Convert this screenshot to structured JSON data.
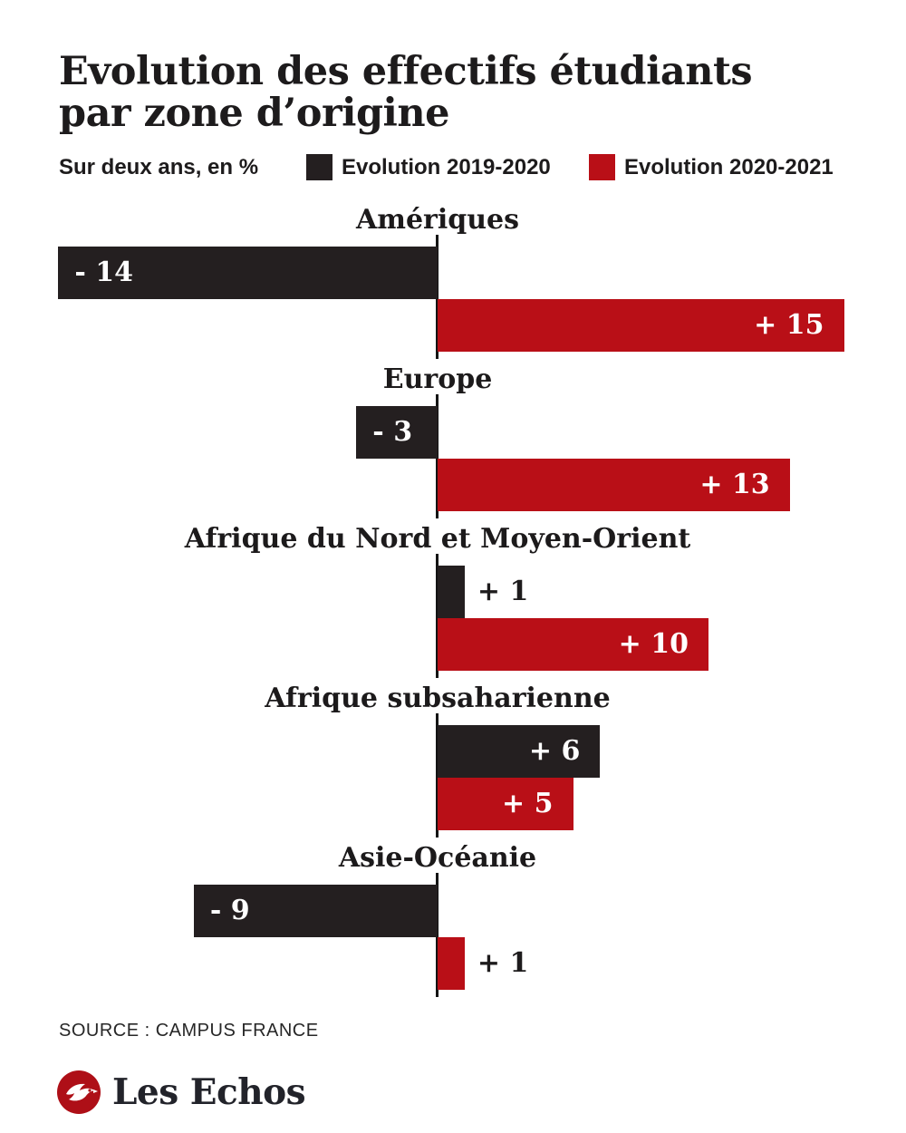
{
  "header": {
    "title_line1": "Evolution des effectifs étudiants",
    "title_line2": "par zone d’origine",
    "subtitle": "Sur deux ans, en %"
  },
  "legend": {
    "items": [
      {
        "label": "Evolution 2019-2020",
        "color": "#241f20"
      },
      {
        "label": "Evolution 2020-2021",
        "color": "#b90f17"
      }
    ]
  },
  "chart_data": {
    "type": "bar",
    "orientation": "horizontal-diverging",
    "title": "Evolution des effectifs étudiants par zone d’origine",
    "subtitle": "Sur deux ans, en %",
    "unit": "%",
    "categories": [
      "Amériques",
      "Europe",
      "Afrique du Nord et Moyen-Orient",
      "Afrique subsaharienne",
      "Asie-Océanie"
    ],
    "series": [
      {
        "name": "Evolution 2019-2020",
        "color": "#241f20",
        "values": [
          -14,
          -3,
          1,
          6,
          -9
        ],
        "value_labels": [
          "- 14",
          "- 3",
          "+ 1",
          "+ 6",
          "- 9"
        ]
      },
      {
        "name": "Evolution 2020-2021",
        "color": "#b90f17",
        "values": [
          15,
          13,
          10,
          5,
          1
        ],
        "value_labels": [
          "+ 15",
          "+ 13",
          "+ 10",
          "+ 5",
          "+ 1"
        ]
      }
    ],
    "value_range": [
      -14,
      15
    ],
    "legend_position": "top",
    "grid": false,
    "zero_axis": true
  },
  "source": "SOURCE : CAMPUS FRANCE",
  "footer": {
    "brand": "Les Echos"
  }
}
